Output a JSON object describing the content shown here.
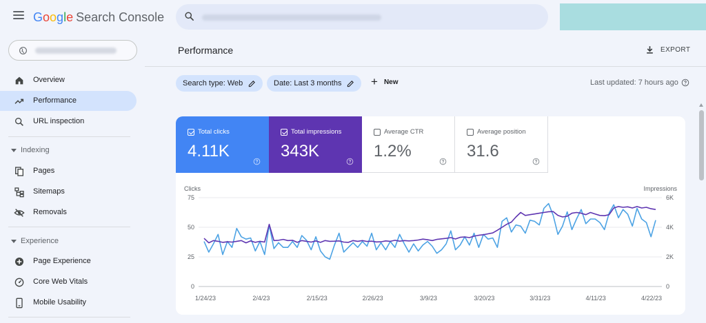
{
  "app": {
    "logo_letters": [
      "G",
      "o",
      "o",
      "g",
      "l",
      "e"
    ],
    "product_name": "Search Console"
  },
  "sidebar": {
    "items": [
      {
        "label": "Overview",
        "icon": "home-icon"
      },
      {
        "label": "Performance",
        "icon": "trending-up-icon",
        "active": true
      },
      {
        "label": "URL inspection",
        "icon": "search-icon"
      }
    ],
    "indexing": {
      "section_label": "Indexing",
      "items": [
        {
          "label": "Pages",
          "icon": "pages-icon"
        },
        {
          "label": "Sitemaps",
          "icon": "sitemap-icon"
        },
        {
          "label": "Removals",
          "icon": "eye-off-icon"
        }
      ]
    },
    "experience": {
      "section_label": "Experience",
      "items": [
        {
          "label": "Page Experience",
          "icon": "add-circle-icon"
        },
        {
          "label": "Core Web Vitals",
          "icon": "speedometer-icon"
        },
        {
          "label": "Mobile Usability",
          "icon": "smartphone-icon"
        }
      ]
    }
  },
  "main": {
    "title": "Performance",
    "export_label": "EXPORT",
    "filters": [
      {
        "label": "Search type: Web"
      },
      {
        "label": "Date: Last 3 months"
      }
    ],
    "new_label": "New",
    "last_updated": "Last updated: 7 hours ago"
  },
  "metrics": [
    {
      "label": "Total clicks",
      "value": "4.11K",
      "checked": true,
      "color": "#4285f4"
    },
    {
      "label": "Total impressions",
      "value": "343K",
      "checked": true,
      "color": "#5e35b1"
    },
    {
      "label": "Average CTR",
      "value": "1.2%",
      "checked": false
    },
    {
      "label": "Average position",
      "value": "31.6",
      "checked": false
    }
  ],
  "chart_data": {
    "type": "line",
    "left_axis_label": "Clicks",
    "right_axis_label": "Impressions",
    "left_ylim": [
      0,
      75
    ],
    "right_ylim": [
      0,
      6000
    ],
    "left_ticks": [
      "75",
      "50",
      "25",
      "0"
    ],
    "right_ticks": [
      "6K",
      "4K",
      "2K",
      "0"
    ],
    "x_labels": [
      "1/24/23",
      "2/4/23",
      "2/15/23",
      "2/26/23",
      "3/9/23",
      "3/20/23",
      "3/31/23",
      "4/11/23",
      "4/22/23"
    ],
    "grid": true,
    "series": [
      {
        "name": "Clicks",
        "axis": "left",
        "color": "#4da3e4",
        "values": [
          38,
          29,
          36,
          44,
          27,
          38,
          33,
          49,
          42,
          40,
          41,
          30,
          38,
          27,
          52,
          32,
          37,
          33,
          33,
          38,
          33,
          43,
          39,
          31,
          42,
          30,
          25,
          23,
          35,
          45,
          29,
          33,
          37,
          33,
          38,
          34,
          45,
          31,
          37,
          31,
          38,
          33,
          44,
          36,
          29,
          36,
          30,
          35,
          38,
          34,
          28,
          31,
          36,
          47,
          31,
          35,
          42,
          35,
          45,
          33,
          44,
          40,
          41,
          33,
          55,
          58,
          46,
          52,
          51,
          45,
          56,
          55,
          52,
          66,
          70,
          60,
          44,
          51,
          63,
          48,
          57,
          65,
          53,
          57,
          57,
          54,
          48,
          62,
          69,
          58,
          65,
          61,
          51,
          66,
          57,
          54,
          42,
          56
        ]
      },
      {
        "name": "Impressions",
        "axis": "right",
        "color": "#5e35b1",
        "values": [
          3250,
          2950,
          3100,
          3050,
          2980,
          3020,
          3000,
          3050,
          3100,
          2950,
          3080,
          2980,
          3050,
          3000,
          4200,
          3100,
          3120,
          3180,
          3100,
          3120,
          2980,
          3100,
          3050,
          3000,
          3080,
          2980,
          3100,
          3050,
          3060,
          3080,
          3000,
          2980,
          3100,
          3050,
          3100,
          3040,
          3060,
          3010,
          3020,
          3080,
          3050,
          3120,
          3060,
          3100,
          3080,
          3100,
          3140,
          3200,
          3160,
          3100,
          3180,
          3220,
          3250,
          3300,
          3210,
          3320,
          3350,
          3300,
          3400,
          3460,
          3500,
          3560,
          3620,
          3800,
          4000,
          4200,
          4350,
          4700,
          5000,
          4800,
          4850,
          4900,
          4950,
          5000,
          5050,
          5060,
          4800,
          4700,
          4750,
          4950,
          5000,
          4950,
          4850,
          5000,
          4900,
          4800,
          4780,
          4850,
          5300,
          5400,
          5350,
          5380,
          5300,
          5400,
          5300,
          5350,
          5250,
          5200
        ]
      }
    ]
  }
}
